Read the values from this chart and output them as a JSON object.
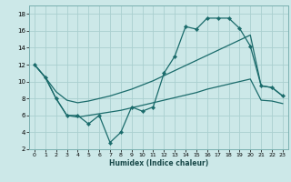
{
  "xlabel": "Humidex (Indice chaleur)",
  "bg_color": "#cce8e8",
  "grid_color": "#aad0d0",
  "line_color": "#1a6b6b",
  "xlim": [
    -0.5,
    23.5
  ],
  "ylim": [
    2,
    19
  ],
  "x_ticks": [
    0,
    1,
    2,
    3,
    4,
    5,
    6,
    7,
    8,
    9,
    10,
    11,
    12,
    13,
    14,
    15,
    16,
    17,
    18,
    19,
    20,
    21,
    22,
    23
  ],
  "y_ticks": [
    2,
    4,
    6,
    8,
    10,
    12,
    14,
    16,
    18
  ],
  "zigzag_x": [
    0,
    1,
    2,
    3,
    4,
    5,
    6,
    7,
    8,
    9,
    10,
    11,
    12,
    13,
    14,
    15,
    16,
    17,
    18,
    19,
    20,
    21,
    22,
    23
  ],
  "zigzag_y": [
    12,
    10.5,
    8,
    6.0,
    6.0,
    5.0,
    6.0,
    2.8,
    4.0,
    7.0,
    6.5,
    7.0,
    11.0,
    13.0,
    16.5,
    16.2,
    17.5,
    17.5,
    17.5,
    16.3,
    14.2,
    9.5,
    9.3,
    8.3
  ],
  "upper_x": [
    0,
    1,
    2,
    3,
    4,
    5,
    6,
    7,
    8,
    9,
    10,
    11,
    12,
    13,
    14,
    15,
    16,
    17,
    18,
    19,
    20,
    21,
    22,
    23
  ],
  "upper_y": [
    12,
    10.5,
    8.8,
    7.8,
    7.5,
    7.7,
    8.0,
    8.3,
    8.7,
    9.1,
    9.6,
    10.1,
    10.7,
    11.3,
    11.9,
    12.5,
    13.1,
    13.7,
    14.3,
    14.9,
    15.5,
    9.5,
    9.3,
    8.3
  ],
  "lower_x": [
    0,
    1,
    2,
    3,
    4,
    5,
    6,
    7,
    8,
    9,
    10,
    11,
    12,
    13,
    14,
    15,
    16,
    17,
    18,
    19,
    20,
    21,
    22,
    23
  ],
  "lower_y": [
    12,
    10.5,
    8.0,
    6.0,
    5.8,
    6.0,
    6.2,
    6.4,
    6.6,
    6.9,
    7.2,
    7.5,
    7.8,
    8.1,
    8.4,
    8.7,
    9.1,
    9.4,
    9.7,
    10.0,
    10.3,
    7.8,
    7.7,
    7.4
  ]
}
